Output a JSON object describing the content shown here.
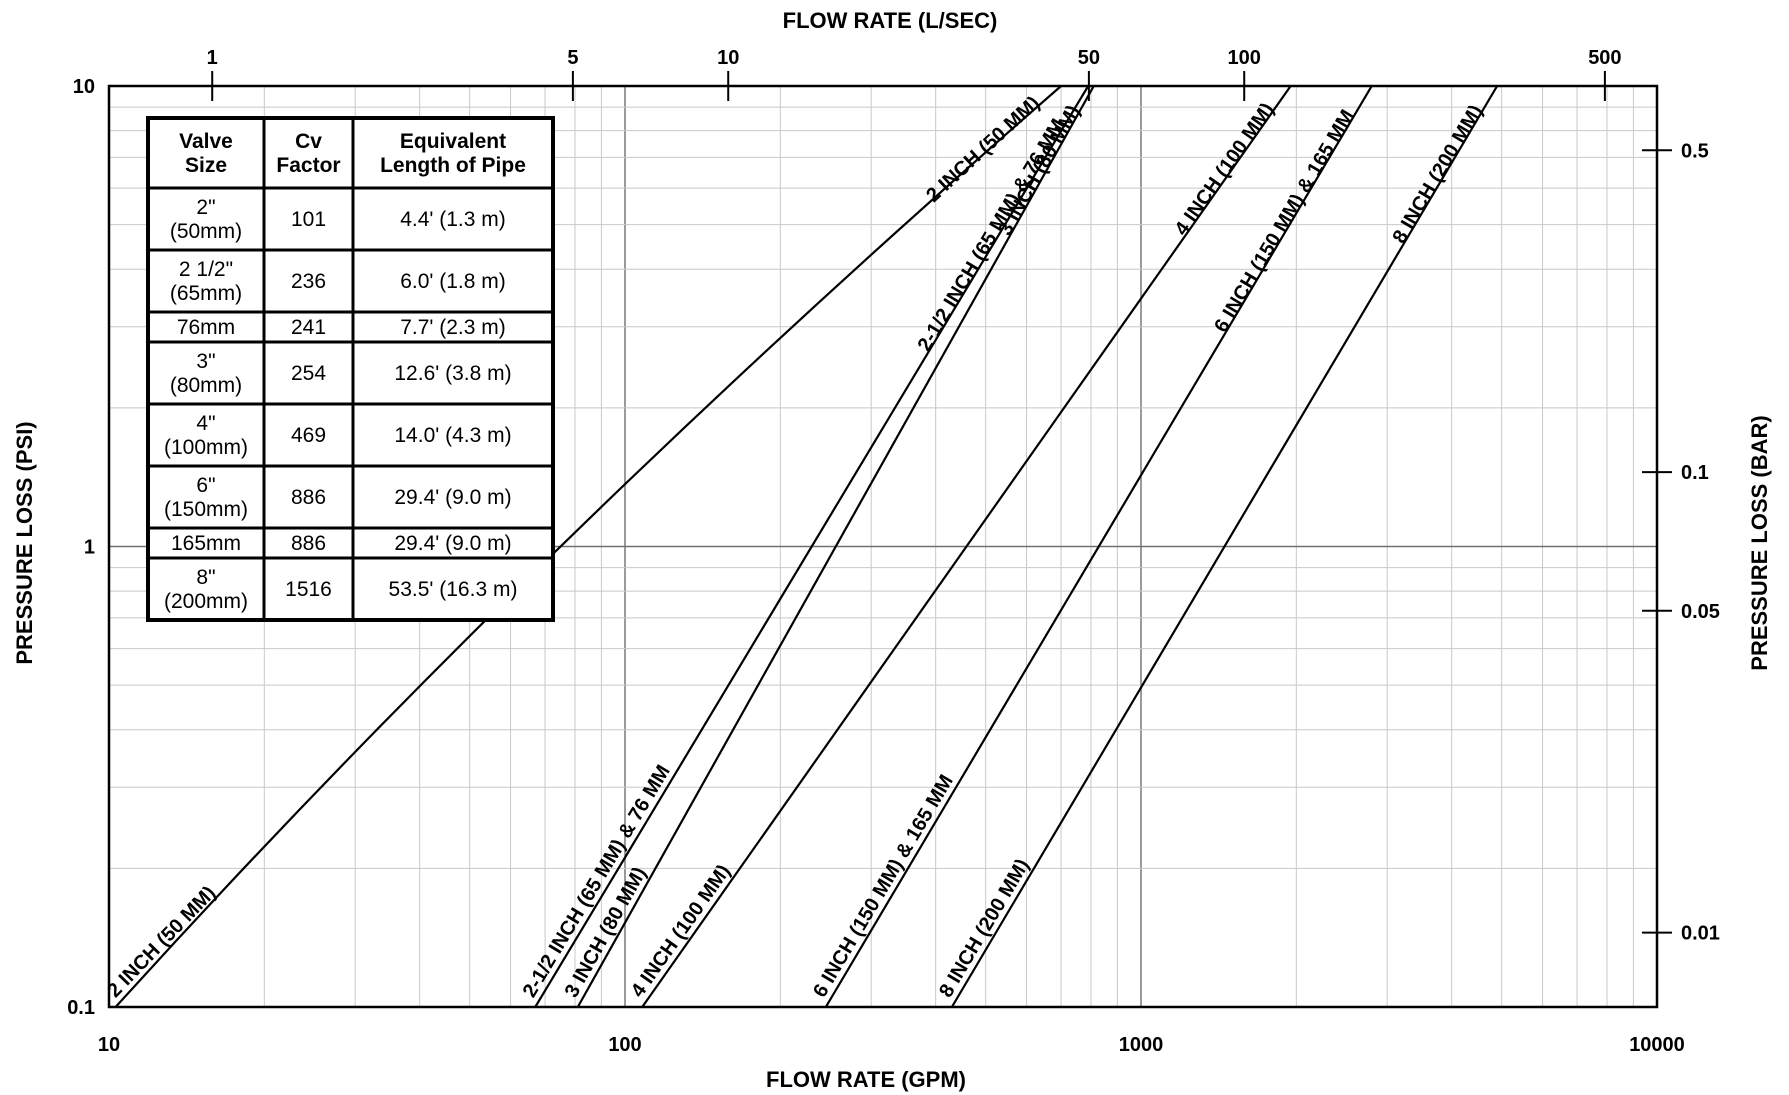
{
  "chart_data": {
    "type": "line",
    "title_top": "FLOW RATE (L/SEC)",
    "xlabel": "FLOW RATE (GPM)",
    "ylabel": "PRESSURE LOSS (PSI)",
    "ylabel_right": "PRESSURE LOSS (BAR)",
    "x_scale": "log",
    "y_scale": "log",
    "xlim": [
      10,
      10000
    ],
    "ylim": [
      0.1,
      10
    ],
    "x_ticks": [
      {
        "value": 10,
        "label": "10"
      },
      {
        "value": 100,
        "label": "100"
      },
      {
        "value": 1000,
        "label": "1000"
      },
      {
        "value": 10000,
        "label": "10000"
      }
    ],
    "y_ticks": [
      {
        "value": 0.1,
        "label": "0.1"
      },
      {
        "value": 1,
        "label": "1"
      },
      {
        "value": 10,
        "label": "10"
      }
    ],
    "top_ticks": [
      {
        "value": 1,
        "label": "1"
      },
      {
        "value": 5,
        "label": "5"
      },
      {
        "value": 10,
        "label": "10"
      },
      {
        "value": 50,
        "label": "50"
      },
      {
        "value": 100,
        "label": "100"
      },
      {
        "value": 500,
        "label": "500"
      }
    ],
    "right_ticks": [
      {
        "value": 0.5,
        "label": "0.5"
      },
      {
        "value": 0.1,
        "label": "0.1"
      },
      {
        "value": 0.05,
        "label": "0.05"
      },
      {
        "value": 0.01,
        "label": "0.01"
      }
    ],
    "grid": true,
    "series": [
      {
        "name": "2 INCH (50 MM)",
        "label_low": "2 INCH (50 MM)",
        "label_high": "2 INCH (50 MM)",
        "x": [
          10.3,
          75,
          700
        ],
        "y": [
          0.1,
          1,
          10
        ]
      },
      {
        "name": "2-1/2 INCH (65 MM) & 76 MM",
        "label_low": "2-1/2 INCH (65 MM) & 76 MM",
        "label_high": "2-1/2 INCH (65 MM) & 76 MM",
        "x": [
          67,
          790
        ],
        "y": [
          0.1,
          10
        ]
      },
      {
        "name": "3 INCH (80 MM)",
        "label_low": "3 INCH (80 MM)",
        "label_high": "3 INCH (80 MM)",
        "x": [
          81,
          810
        ],
        "y": [
          0.1,
          10
        ]
      },
      {
        "name": "4 INCH (100 MM)",
        "label_low": "4 INCH (100 MM)",
        "label_high": "4 INCH (100 MM)",
        "x": [
          108,
          1950
        ],
        "y": [
          0.1,
          10
        ]
      },
      {
        "name": "6 INCH (150 MM) & 165 MM",
        "label_low": "6 INCH (150 MM) & 165 MM",
        "label_high": "6 INCH (150 MM) & 165 MM",
        "x": [
          245,
          2800
        ],
        "y": [
          0.1,
          10
        ]
      },
      {
        "name": "8 INCH (200 MM)",
        "label_low": "8 INCH (200 MM)",
        "label_high": "8 INCH (200 MM)",
        "x": [
          430,
          4900
        ],
        "y": [
          0.1,
          10
        ]
      }
    ],
    "table": {
      "headers": [
        [
          "Valve",
          "Size"
        ],
        [
          "Cv",
          "Factor"
        ],
        [
          "Equivalent",
          "Length of Pipe"
        ]
      ],
      "rows": [
        {
          "size": [
            "2\"",
            "(50mm)"
          ],
          "cv": "101",
          "length": "4.4' (1.3 m)"
        },
        {
          "size": [
            "2 1/2\"",
            "(65mm)"
          ],
          "cv": "236",
          "length": "6.0' (1.8 m)"
        },
        {
          "size": [
            "76mm"
          ],
          "cv": "241",
          "length": "7.7' (2.3 m)"
        },
        {
          "size": [
            "3\"",
            "(80mm)"
          ],
          "cv": "254",
          "length": "12.6' (3.8 m)"
        },
        {
          "size": [
            "4\"",
            "(100mm)"
          ],
          "cv": "469",
          "length": "14.0' (4.3 m)"
        },
        {
          "size": [
            "6\"",
            "(150mm)"
          ],
          "cv": "886",
          "length": "29.4' (9.0 m)"
        },
        {
          "size": [
            "165mm"
          ],
          "cv": "886",
          "length": "29.4' (9.0 m)"
        },
        {
          "size": [
            "8\"",
            "(200mm)"
          ],
          "cv": "1516",
          "length": "53.5' (16.3 m)"
        }
      ]
    }
  }
}
